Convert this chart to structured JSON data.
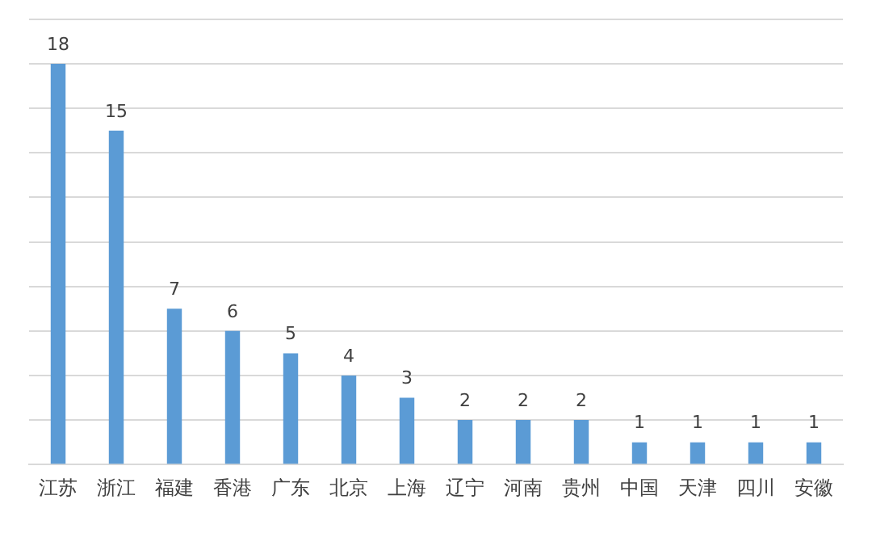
{
  "chart_data": {
    "type": "bar",
    "categories": [
      "江苏",
      "浙江",
      "福建",
      "香港",
      "广东",
      "北京",
      "上海",
      "辽宁",
      "河南",
      "贵州",
      "中国",
      "天津",
      "四川",
      "安徽"
    ],
    "values": [
      18,
      15,
      7,
      6,
      5,
      4,
      3,
      2,
      2,
      2,
      1,
      1,
      1,
      1
    ],
    "color": "#5b9bd5",
    "ylim": [
      0,
      20
    ],
    "yticks": [
      {
        "value": 0,
        "label": null
      },
      {
        "value": 2,
        "label": null
      },
      {
        "value": 4,
        "label": null
      },
      {
        "value": 6,
        "label": null
      },
      {
        "value": 8,
        "label": null
      },
      {
        "value": 10,
        "label": null
      },
      {
        "value": 12,
        "label": null
      },
      {
        "value": 14,
        "label": null
      },
      {
        "value": 16,
        "label": null
      },
      {
        "value": 18,
        "label": null
      },
      {
        "value": 20,
        "label": null
      }
    ],
    "grid": "y",
    "tick_labels": "x",
    "data_labels": true,
    "legend": false
  }
}
